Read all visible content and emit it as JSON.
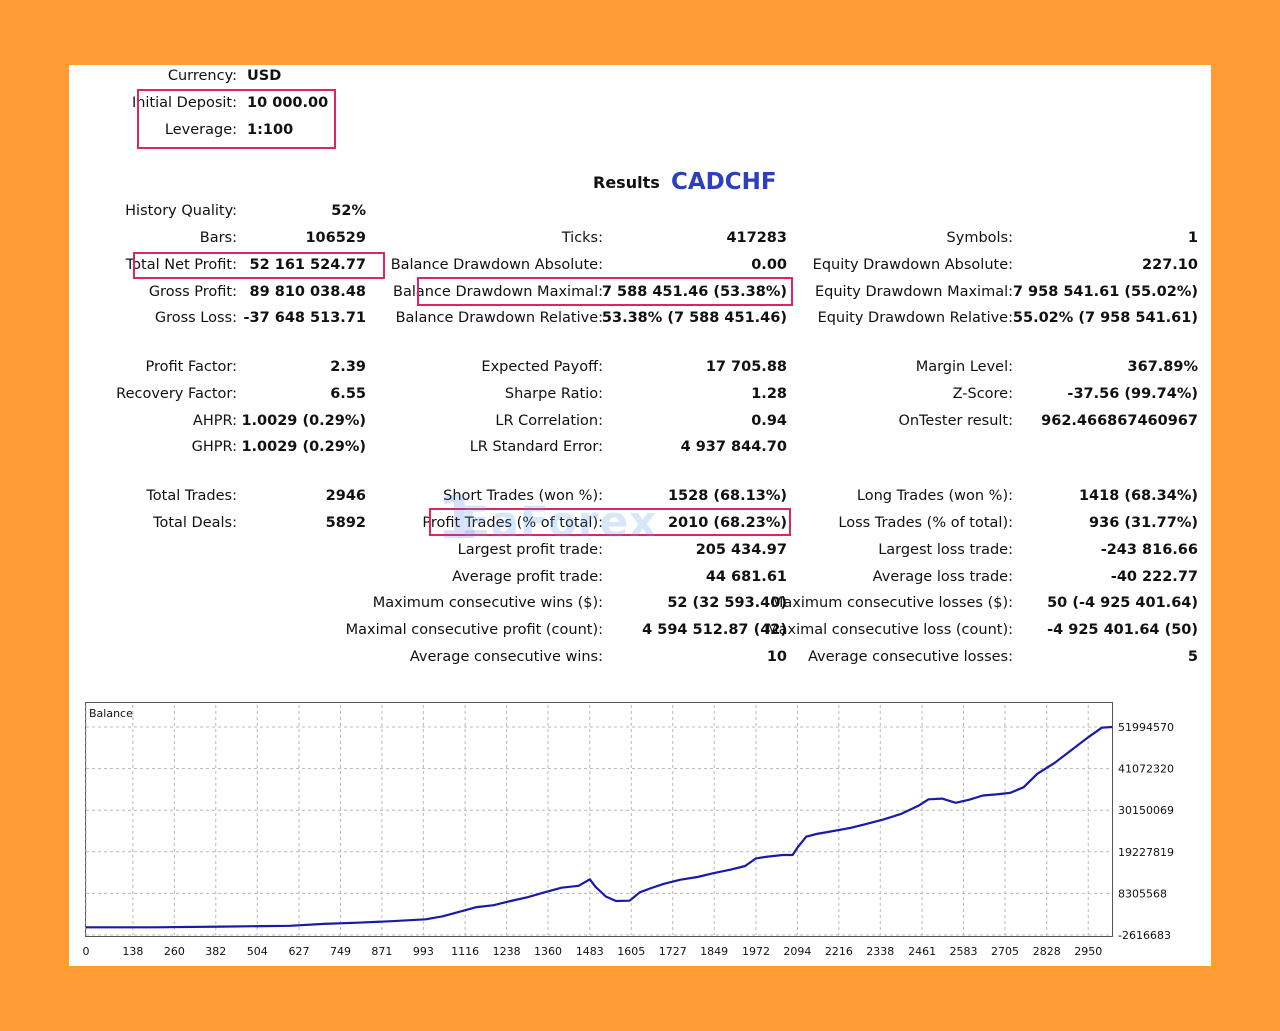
{
  "header": {
    "currency_label": "Currency:",
    "currency_value": "USD",
    "deposit_label": "Initial Deposit:",
    "deposit_value": "10 000.00",
    "leverage_label": "Leverage:",
    "leverage_value": "1:100"
  },
  "results": {
    "title": "Results",
    "symbol": "CADCHF"
  },
  "watermark": {
    "number": "1",
    "text": "EaForex"
  },
  "stats": {
    "col1": [
      {
        "label": "History Quality:",
        "value": "52%"
      },
      {
        "label": "Bars:",
        "value": "106529"
      },
      {
        "label": "Total Net Profit:",
        "value": "52 161 524.77"
      },
      {
        "label": "Gross Profit:",
        "value": "89 810 038.48"
      },
      {
        "label": "Gross Loss:",
        "value": "-37 648 513.71"
      },
      {
        "label": "Profit Factor:",
        "value": "2.39"
      },
      {
        "label": "Recovery Factor:",
        "value": "6.55"
      },
      {
        "label": "AHPR:",
        "value": "1.0029 (0.29%)"
      },
      {
        "label": "GHPR:",
        "value": "1.0029 (0.29%)"
      },
      {
        "label": "Total Trades:",
        "value": "2946"
      },
      {
        "label": "Total Deals:",
        "value": "5892"
      }
    ],
    "col2": [
      {
        "label": "Ticks:",
        "value": "417283"
      },
      {
        "label": "Balance Drawdown Absolute:",
        "value": "0.00"
      },
      {
        "label": "Balance Drawdown Maximal:",
        "value": "7 588 451.46 (53.38%)"
      },
      {
        "label": "Balance Drawdown Relative:",
        "value": "53.38% (7 588 451.46)"
      },
      {
        "label": "Expected Payoff:",
        "value": "17 705.88"
      },
      {
        "label": "Sharpe Ratio:",
        "value": "1.28"
      },
      {
        "label": "LR Correlation:",
        "value": "0.94"
      },
      {
        "label": "LR Standard Error:",
        "value": "4 937 844.70"
      },
      {
        "label": "Short Trades (won %):",
        "value": "1528 (68.13%)"
      },
      {
        "label": "Profit Trades (% of total):",
        "value": "2010 (68.23%)"
      },
      {
        "label": "Largest profit trade:",
        "value": "205 434.97"
      },
      {
        "label": "Average profit trade:",
        "value": "44 681.61"
      },
      {
        "label": "Maximum consecutive wins ($):",
        "value": "52 (32 593.40)"
      },
      {
        "label": "Maximal consecutive profit (count):",
        "value": "4 594 512.87 (42)"
      },
      {
        "label": "Average consecutive wins:",
        "value": "10"
      }
    ],
    "col3": [
      {
        "label": "Symbols:",
        "value": "1"
      },
      {
        "label": "Equity Drawdown Absolute:",
        "value": "227.10"
      },
      {
        "label": "Equity Drawdown Maximal:",
        "value": "7 958 541.61 (55.02%)"
      },
      {
        "label": "Equity Drawdown Relative:",
        "value": "55.02% (7 958 541.61)"
      },
      {
        "label": "Margin Level:",
        "value": "367.89%"
      },
      {
        "label": "Z-Score:",
        "value": "-37.56 (99.74%)"
      },
      {
        "label": "OnTester result:",
        "value": "962.466867460967"
      },
      {
        "label": "Long Trades (won %):",
        "value": "1418 (68.34%)"
      },
      {
        "label": "Loss Trades (% of total):",
        "value": "936 (31.77%)"
      },
      {
        "label": "Largest loss trade:",
        "value": "-243 816.66"
      },
      {
        "label": "Average loss trade:",
        "value": "-40 222.77"
      },
      {
        "label": "Maximum consecutive losses ($):",
        "value": "50 (-4 925 401.64)"
      },
      {
        "label": "Maximal consecutive loss (count):",
        "value": "-4 925 401.64 (50)"
      },
      {
        "label": "Average consecutive losses:",
        "value": "5"
      }
    ]
  },
  "colors": {
    "highlight": "#e0245e",
    "line": "#1a1aa6",
    "background": "#ff9c33",
    "symbol": "#2d3fbf"
  },
  "chart_data": {
    "type": "line",
    "title": "Balance",
    "x_ticks": [
      0,
      138,
      260,
      382,
      504,
      627,
      749,
      871,
      993,
      1116,
      1238,
      1360,
      1483,
      1605,
      1727,
      1849,
      1972,
      2094,
      2216,
      2338,
      2461,
      2583,
      2705,
      2828,
      2950
    ],
    "y_ticks": [
      51994570,
      41072320,
      30150069,
      19227819,
      8305568,
      -2616683
    ],
    "xlim": [
      0,
      3020
    ],
    "ylim": [
      -2616683,
      51994570
    ],
    "grid": true,
    "series": [
      {
        "x": [
          0,
          200,
          400,
          600,
          700,
          800,
          900,
          1000,
          1050,
          1100,
          1150,
          1200,
          1250,
          1300,
          1350,
          1400,
          1450,
          1483,
          1500,
          1530,
          1560,
          1600,
          1630,
          1660,
          1700,
          1750,
          1800,
          1850,
          1900,
          1940,
          1972,
          2000,
          2050,
          2080,
          2094,
          2120,
          2150,
          2200,
          2250,
          2300,
          2350,
          2400,
          2450,
          2480,
          2520,
          2560,
          2600,
          2640,
          2680,
          2720,
          2760,
          2800,
          2850,
          2900,
          2950,
          2990,
          3020
        ],
        "y": [
          -600000,
          -600000,
          -400000,
          -200000,
          300000,
          600000,
          1000000,
          1500000,
          2300000,
          3500000,
          4700000,
          5200000,
          6300000,
          7300000,
          8600000,
          9800000,
          10300000,
          12000000,
          10000000,
          7500000,
          6300000,
          6400000,
          8600000,
          9600000,
          10800000,
          11900000,
          12600000,
          13700000,
          14600000,
          15500000,
          17500000,
          17900000,
          18400000,
          18400000,
          20300000,
          23200000,
          23900000,
          24700000,
          25500000,
          26600000,
          27800000,
          29200000,
          31300000,
          33000000,
          33200000,
          32100000,
          32900000,
          34000000,
          34300000,
          34700000,
          36200000,
          39700000,
          42500000,
          45900000,
          49300000,
          51800000,
          52000000
        ]
      }
    ]
  }
}
